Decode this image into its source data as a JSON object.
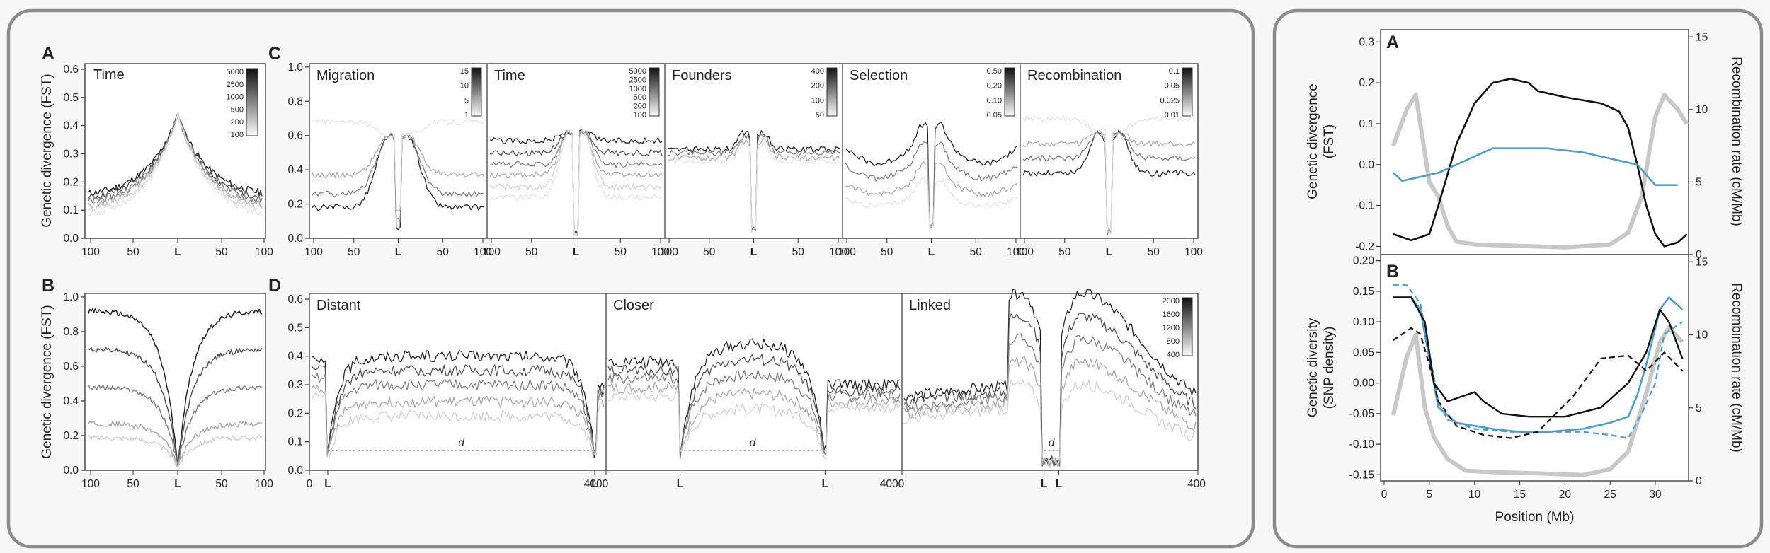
{
  "left_figure": {
    "panels": {
      "A": {
        "letter": "A",
        "title": "Time",
        "ylabel": "Genetic divergence (F",
        "ylabel_sub": "ST",
        "ylabel_end": ")",
        "yticks": [
          "0.0",
          "0.1",
          "0.2",
          "0.3",
          "0.4",
          "0.5",
          "0.6"
        ],
        "xticks": [
          "100",
          "50",
          "L",
          "50",
          "100"
        ],
        "legend": [
          "5000",
          "2500",
          "1000",
          "500",
          "200",
          "100"
        ]
      },
      "B": {
        "letter": "B",
        "ylabel": "Genetic divergence (F",
        "ylabel_sub": "ST",
        "ylabel_end": ")",
        "yticks": [
          "0.0",
          "0.2",
          "0.4",
          "0.6",
          "0.8",
          "1.0"
        ],
        "xticks": [
          "100",
          "50",
          "L",
          "50",
          "100"
        ]
      },
      "C": {
        "letter": "C",
        "yticks": [
          "0.0",
          "0.2",
          "0.4",
          "0.6",
          "0.8",
          "1.0"
        ],
        "xticks": [
          "100",
          "50",
          "L",
          "50",
          "100"
        ],
        "subpanels": [
          {
            "title": "Migration",
            "legend": [
              "15",
              "10",
              "5",
              "1"
            ]
          },
          {
            "title": "Time",
            "legend": [
              "5000",
              "2500",
              "1000",
              "500",
              "200",
              "100"
            ]
          },
          {
            "title": "Founders",
            "legend": [
              "400",
              "200",
              "100",
              "50"
            ]
          },
          {
            "title": "Selection",
            "legend": [
              "0.50",
              "0.20",
              "0.10",
              "0.05"
            ]
          },
          {
            "title": "Recombination",
            "legend": [
              "0.1",
              "0.05",
              "0.025",
              "0.01"
            ]
          }
        ]
      },
      "D": {
        "letter": "D",
        "yticks": [
          "0.0",
          "0.1",
          "0.2",
          "0.3",
          "0.4",
          "0.5",
          "0.6"
        ],
        "subpanels": [
          {
            "title": "Distant",
            "xticks": [
              "0",
              "L",
              "L"
            ],
            "end_tick": "4000",
            "d_label": "d"
          },
          {
            "title": "Closer",
            "xticks": [
              "L",
              "L"
            ],
            "end_tick": "4000",
            "d_label": "d"
          },
          {
            "title": "Linked",
            "xticks": [
              "L",
              "L"
            ],
            "end_tick": "400",
            "d_label": "d",
            "legend": [
              "2000",
              "1600",
              "1200",
              "800",
              "400"
            ]
          }
        ]
      }
    }
  },
  "right_figure": {
    "A": {
      "letter": "A",
      "ylabel_line1": "Genetic divergence",
      "ylabel_line2": "(F",
      "ylabel_sub": "ST",
      "ylabel_end": ")",
      "yticks": [
        "0.3",
        "0.2",
        "0.1",
        "0.0",
        "-0.1",
        "-0.2"
      ],
      "y2label": "Recombination rate (cM/Mb)",
      "y2ticks": [
        "15",
        "10",
        "5",
        "0"
      ]
    },
    "B": {
      "letter": "B",
      "ylabel_line1": "Genetic diversity",
      "ylabel_line2": "(SNP density)",
      "yticks": [
        "0.20",
        "0.15",
        "0.10",
        "0.05",
        "0.00",
        "-0.05",
        "-0.10",
        "-0.15"
      ],
      "y2label": "Recombination rate (cM/Mb)",
      "y2ticks": [
        "15",
        "10",
        "5",
        "0"
      ],
      "xlabel": "Position (Mb)",
      "xticks": [
        "0",
        "5",
        "10",
        "15",
        "20",
        "25",
        "30"
      ]
    }
  },
  "colors": {
    "grayscale": [
      "#1a1a1a",
      "#4d4d4d",
      "#7a7a7a",
      "#a6a6a6",
      "#cfcfcf",
      "#e3e3e3"
    ],
    "blue": "#4f9ccb",
    "recomb_gray": "#c8c8c8"
  },
  "chart_data": [
    {
      "type": "line",
      "panel": "A",
      "title": "Time",
      "x": [
        "100",
        "50",
        "L",
        "50",
        "100"
      ],
      "series": [
        {
          "name": "5000",
          "values": [
            0.14,
            0.22,
            0.44,
            0.22,
            0.14
          ]
        },
        {
          "name": "100",
          "values": [
            0.08,
            0.14,
            0.42,
            0.14,
            0.08
          ]
        }
      ],
      "ylim": [
        0,
        0.6
      ]
    },
    {
      "type": "line",
      "panel": "B",
      "x": [
        "100",
        "50",
        "L",
        "50",
        "100"
      ],
      "series": [
        {
          "values": [
            0.88,
            0.8,
            0.02,
            0.8,
            0.9
          ]
        },
        {
          "values": [
            0.7,
            0.65,
            0.02,
            0.62,
            0.68
          ]
        },
        {
          "values": [
            0.47,
            0.44,
            0.02,
            0.43,
            0.46
          ]
        },
        {
          "values": [
            0.25,
            0.24,
            0.02,
            0.23,
            0.25
          ]
        },
        {
          "values": [
            0.16,
            0.16,
            0.02,
            0.16,
            0.17
          ]
        }
      ],
      "ylim": [
        0,
        1.0
      ]
    },
    {
      "type": "line",
      "panel": "right-A",
      "xlabel": "Position (Mb)",
      "series": [
        {
          "values": [
            -0.17,
            0.21,
            0.18,
            0.13,
            -0.18
          ]
        },
        {
          "values": [
            -0.03,
            0.04,
            0.04,
            0.0,
            -0.05
          ]
        }
      ],
      "ylim": [
        -0.22,
        0.33
      ]
    },
    {
      "type": "line",
      "panel": "right-B",
      "xlabel": "Position (Mb)",
      "series": [
        {
          "values": [
            0.14,
            -0.05,
            -0.06,
            -0.03,
            0.04
          ]
        },
        {
          "values": [
            0.14,
            -0.07,
            -0.08,
            -0.06,
            0.13
          ]
        }
      ],
      "ylim": [
        -0.16,
        0.21
      ]
    }
  ]
}
